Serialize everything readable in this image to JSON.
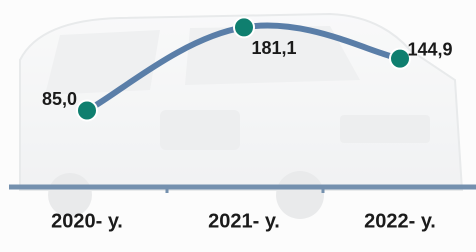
{
  "chart_data": {
    "type": "line",
    "categories": [
      "2020- у.",
      "2021- у.",
      "2022- у."
    ],
    "values": [
      85.0,
      181.1,
      144.9
    ],
    "value_labels": [
      "85,0",
      "181,1",
      "144,9"
    ],
    "color": "#5a7ea8",
    "marker_color": "#0f7f6f",
    "axis_color": "#7490ae",
    "ylim": [
      0,
      200
    ]
  }
}
